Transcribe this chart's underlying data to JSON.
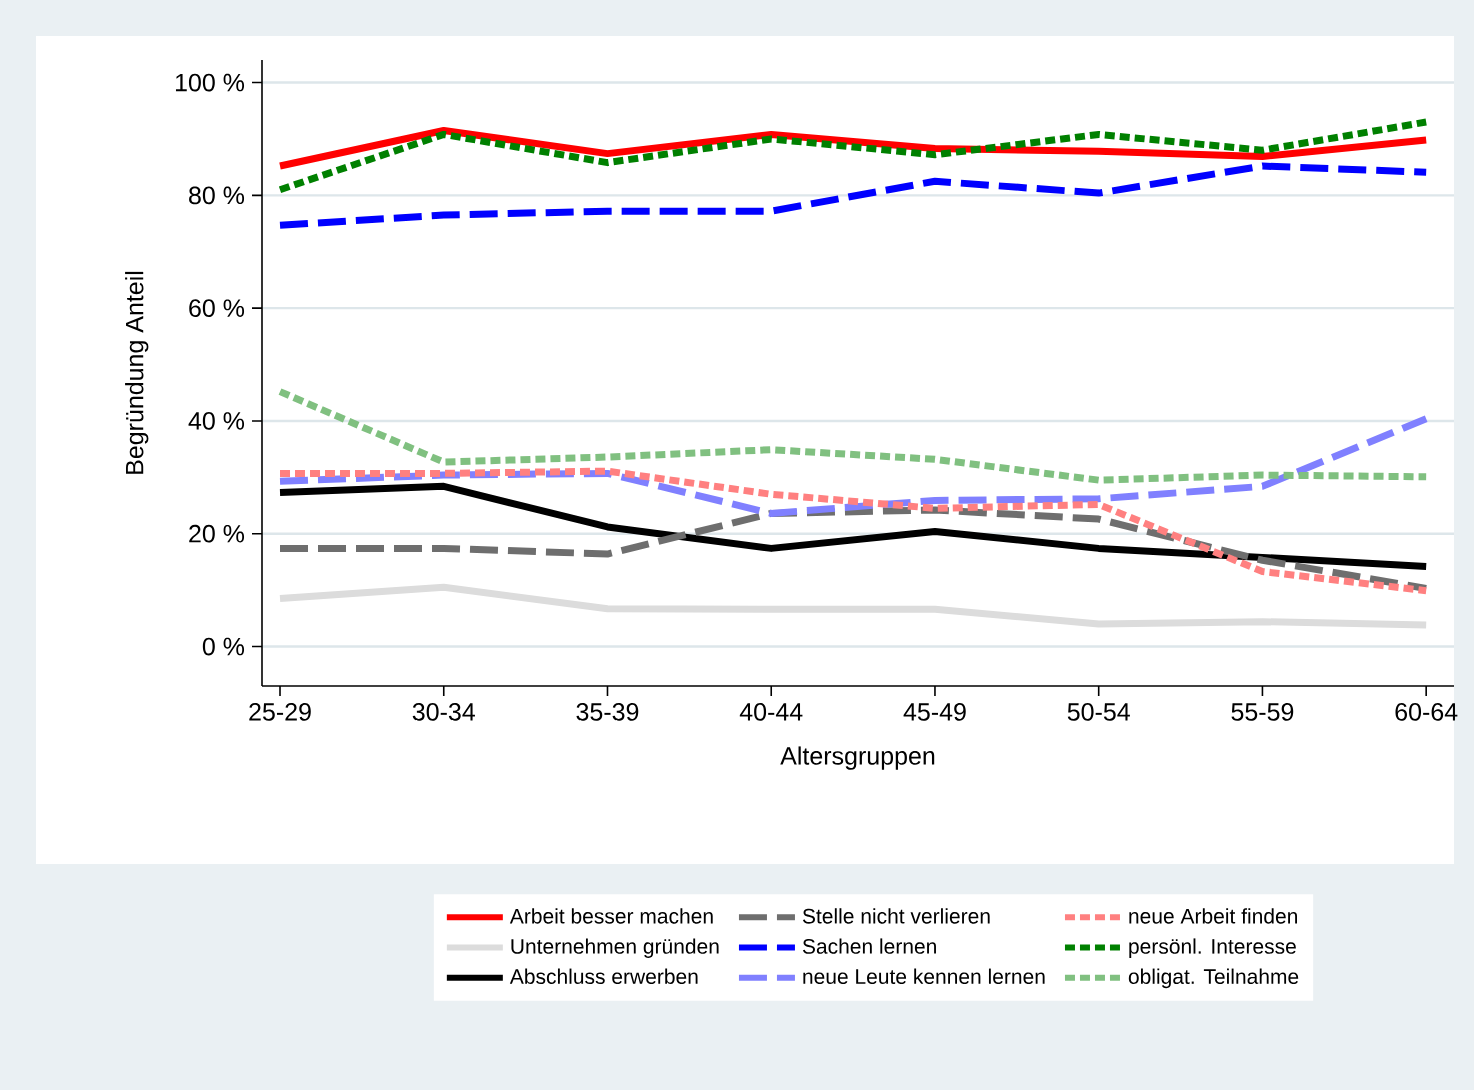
{
  "chart_data": {
    "type": "line",
    "xlabel": "Altersgruppen",
    "ylabel": "Begründung Anteil",
    "categories": [
      "25-29",
      "30-34",
      "35-39",
      "40-44",
      "45-49",
      "50-54",
      "55-59",
      "60-64"
    ],
    "ylim": [
      -7,
      104
    ],
    "yticks": [
      {
        "value": 0,
        "label": "0 %"
      },
      {
        "value": 20,
        "label": "20 %"
      },
      {
        "value": 40,
        "label": "40 %"
      },
      {
        "value": 60,
        "label": "60 %"
      },
      {
        "value": 80,
        "label": "80 %"
      },
      {
        "value": 100,
        "label": "100 %"
      }
    ],
    "grid": "y",
    "legend": "bottom",
    "marker": "none",
    "series": [
      {
        "name": "Arbeit besser machen",
        "color": "#ff0000",
        "line_style": "solid",
        "values": [
          85.2,
          91.5,
          87.4,
          90.8,
          88.3,
          87.8,
          86.9,
          89.8
        ]
      },
      {
        "name": "Unternehmen gründen",
        "color": "#dcdcdc",
        "line_style": "solid",
        "values": [
          8.5,
          10.5,
          6.7,
          6.6,
          6.6,
          4.0,
          4.4,
          3.8
        ]
      },
      {
        "name": "Abschluss erwerben",
        "color": "#000000",
        "line_style": "solid",
        "values": [
          27.3,
          28.4,
          21.2,
          17.4,
          20.4,
          17.4,
          15.8,
          14.2
        ]
      },
      {
        "name": "Stelle nicht verlieren",
        "color": "#6e6e6e",
        "line_style": "dashed",
        "values": [
          17.4,
          17.4,
          16.4,
          23.6,
          24.2,
          22.6,
          15.3,
          10.3
        ]
      },
      {
        "name": "Sachen lernen",
        "color": "#0000ff",
        "line_style": "dashed",
        "values": [
          74.7,
          76.5,
          77.2,
          77.2,
          82.5,
          80.4,
          85.2,
          84.1
        ]
      },
      {
        "name": "neue Leute kennen lernen",
        "color": "#8080ff",
        "line_style": "dashed",
        "values": [
          29.3,
          30.4,
          30.7,
          23.6,
          25.9,
          26.2,
          28.4,
          40.4
        ]
      },
      {
        "name": "neue Arbeit finden",
        "color": "#ff8080",
        "line_style": "dotted",
        "values": [
          30.7,
          30.7,
          31.1,
          27.0,
          24.5,
          25.2,
          13.3,
          9.9
        ]
      },
      {
        "name": "persönl. Interesse",
        "color": "#008000",
        "line_style": "dotted",
        "values": [
          81.0,
          90.8,
          85.8,
          90.0,
          87.2,
          90.8,
          88.0,
          93.0
        ]
      },
      {
        "name": "obligat. Teilnahme",
        "color": "#80c080",
        "line_style": "dotted",
        "values": [
          45.2,
          32.7,
          33.6,
          34.9,
          33.2,
          29.5,
          30.4,
          30.1
        ]
      }
    ]
  }
}
